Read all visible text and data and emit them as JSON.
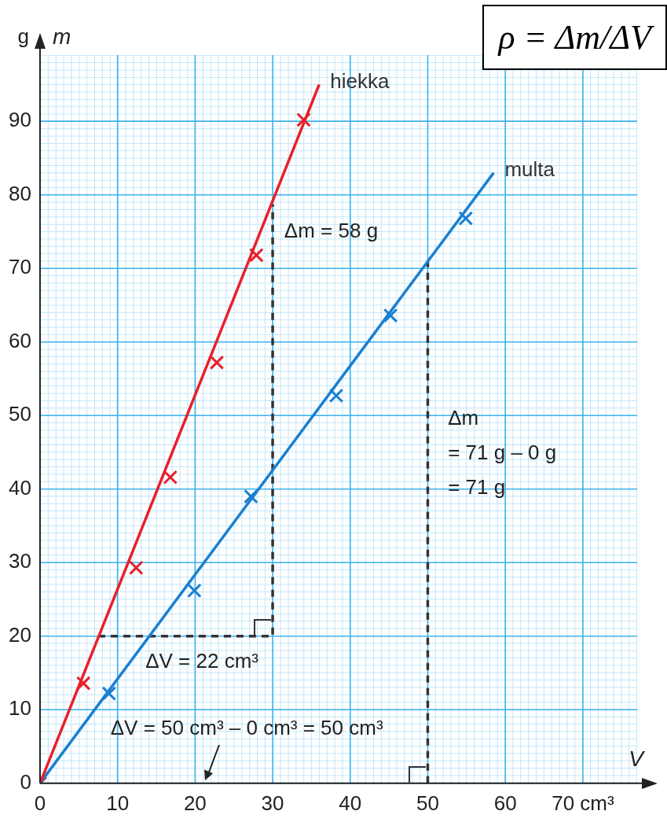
{
  "chart_data": {
    "type": "scatter",
    "title": "ρ = Δm/ΔV",
    "xlabel": "V",
    "ylabel": "m",
    "xlim": [
      0,
      77
    ],
    "ylim": [
      0,
      99
    ],
    "xticks": [
      0,
      10,
      20,
      30,
      40,
      50,
      60,
      {
        "value": 70,
        "label": "70 cm³"
      }
    ],
    "yticks": [
      0,
      10,
      20,
      30,
      40,
      50,
      60,
      70,
      80,
      90
    ],
    "grid": true,
    "legend": false,
    "marker": "cross",
    "series": [
      {
        "name": "hiekka",
        "type": "line",
        "marker": "none",
        "color": "#e8202a",
        "x": [
          0,
          36
        ],
        "values": [
          0,
          95
        ]
      },
      {
        "name": "multa",
        "type": "line",
        "marker": "none",
        "color": "#1a7fd0",
        "x": [
          0,
          58.5
        ],
        "values": [
          0,
          83
        ]
      },
      {
        "type": "scatter",
        "color": "#e8202a",
        "x": [
          0,
          5.6,
          12.4,
          16.8,
          22.8,
          27.9,
          34
        ],
        "values": [
          0,
          13.6,
          29.3,
          41.6,
          57.2,
          71.8,
          90.2
        ]
      },
      {
        "type": "scatter",
        "color": "#1a7fd0",
        "x": [
          0,
          8.9,
          19.9,
          27.2,
          38.2,
          45.2,
          54.9
        ],
        "values": [
          0,
          12.2,
          26.2,
          39,
          52.7,
          63.6,
          76.8
        ]
      },
      {
        "type": "line",
        "marker": "none",
        "line_style": "dashed",
        "color": "#333333",
        "x": [
          7.5,
          30,
          30
        ],
        "values": [
          20,
          20,
          78.7
        ]
      },
      {
        "type": "line",
        "marker": "none",
        "line_style": "dashed",
        "color": "#333333",
        "x": [
          50,
          50
        ],
        "values": [
          0,
          71
        ]
      }
    ],
    "annotations": [
      "g",
      "Δm = 58 g",
      "ΔV = 22 cm³",
      "Δm\n= 71 g – 0 g\n= 71 g",
      "ΔV = 50 cm³ – 0 cm³ = 50 cm³"
    ]
  }
}
